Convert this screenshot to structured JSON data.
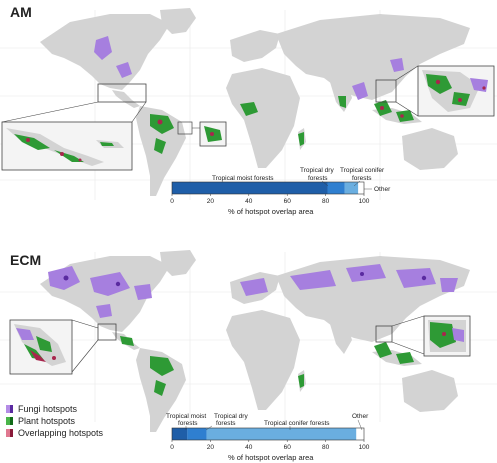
{
  "panels": [
    {
      "id": "am",
      "label": "AM",
      "bar": {
        "segments": [
          {
            "label": "Tropical moist forests",
            "percent": 81,
            "color": "#1f5ea8"
          },
          {
            "label": "Tropical dry forests",
            "percent": 9,
            "color": "#2f7fd0"
          },
          {
            "label": "Tropical conifer forests",
            "percent": 7,
            "color": "#6aaee0"
          },
          {
            "label": "Other",
            "percent": 3,
            "color": "#ffffff"
          }
        ],
        "ticks": [
          "0",
          "20",
          "40",
          "60",
          "80",
          "100"
        ],
        "axis_label": "% of hotspot overlap area"
      }
    },
    {
      "id": "ecm",
      "label": "ECM",
      "bar": {
        "segments": [
          {
            "label": "Tropical moist forests",
            "percent": 8,
            "color": "#1f5ea8"
          },
          {
            "label": "Tropical dry forests",
            "percent": 10,
            "color": "#2f7fd0"
          },
          {
            "label": "Tropical conifer forests",
            "percent": 78,
            "color": "#6aaee0"
          },
          {
            "label": "Other",
            "percent": 4,
            "color": "#ffffff"
          }
        ],
        "ticks": [
          "0",
          "20",
          "40",
          "60",
          "80",
          "100"
        ],
        "axis_label": "% of hotspot overlap area"
      }
    }
  ],
  "legend": [
    {
      "label": "Fungi hotspots",
      "colors": [
        "#b48ce6",
        "#5a2aa0"
      ]
    },
    {
      "label": "Plant hotspots",
      "colors": [
        "#4ab54a",
        "#126a18"
      ]
    },
    {
      "label": "Overlapping hotspots",
      "colors": [
        "#e07890",
        "#8a1a3a"
      ]
    }
  ],
  "colors": {
    "land": "#d3d3d3",
    "grid": "#e6e6e6",
    "fungi": "#a67fdf",
    "plant": "#2e9a35",
    "overlap": "#a8264d"
  }
}
